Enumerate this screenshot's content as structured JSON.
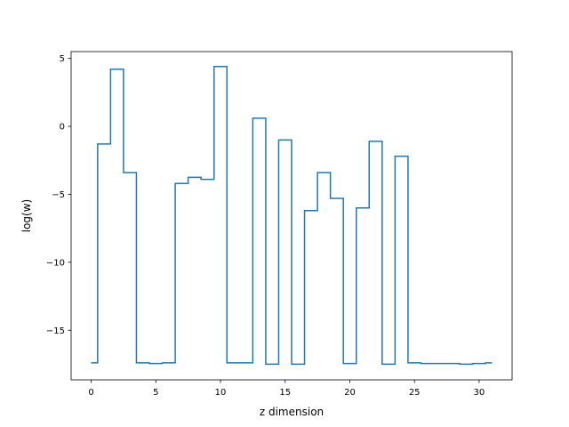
{
  "chart_data": {
    "type": "line",
    "drawstyle": "steps-mid",
    "title": "",
    "xlabel": "z dimension",
    "ylabel": "log(w)",
    "xlim": [
      -1.55,
      32.55
    ],
    "ylim": [
      -18.65,
      5.5
    ],
    "grid": false,
    "color": "#1f77b4",
    "xticks": [
      0,
      5,
      10,
      15,
      20,
      25,
      30
    ],
    "xtick_labels": [
      "0",
      "5",
      "10",
      "15",
      "20",
      "25",
      "30"
    ],
    "yticks": [
      5,
      0,
      -5,
      -10,
      -15
    ],
    "ytick_labels": [
      "5",
      "0",
      "−5",
      "−10",
      "−15"
    ],
    "series": [
      {
        "x": [
          0,
          1,
          2,
          3,
          4,
          5,
          6,
          7,
          8,
          9,
          10,
          11,
          12,
          13,
          14,
          15,
          16,
          17,
          18,
          19,
          20,
          21,
          22,
          23,
          24,
          25,
          26,
          27,
          28,
          29,
          30,
          31
        ],
        "values": [
          -17.4,
          -1.3,
          4.2,
          -3.4,
          -17.4,
          -17.45,
          -17.4,
          -4.2,
          -3.75,
          -3.9,
          4.4,
          -17.4,
          -17.4,
          0.6,
          -17.5,
          -1.0,
          -17.5,
          -6.2,
          -3.4,
          -5.3,
          -17.45,
          -6.0,
          -1.1,
          -17.5,
          -2.2,
          -17.4,
          -17.45,
          -17.45,
          -17.45,
          -17.5,
          -17.45,
          -17.4
        ]
      }
    ]
  }
}
